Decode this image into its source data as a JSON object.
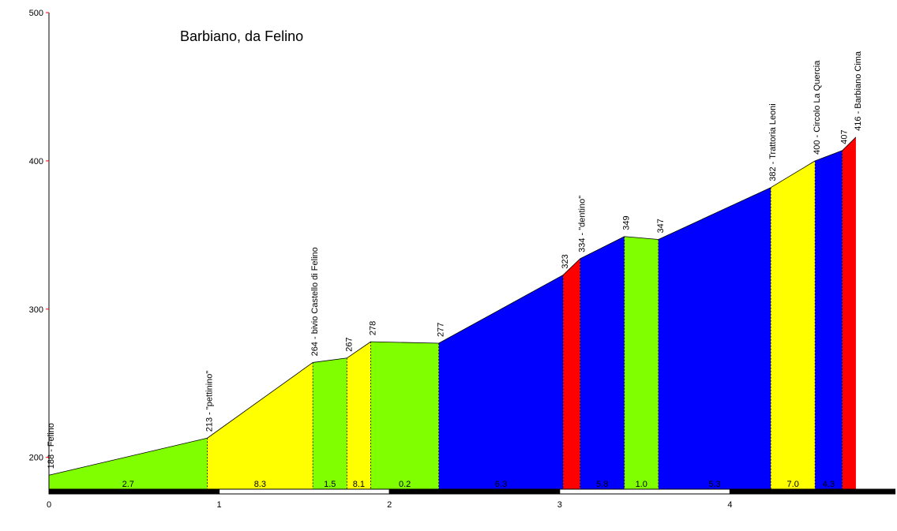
{
  "chart_data": {
    "type": "area",
    "title": "Barbiano, da Felino",
    "xlabel": "",
    "ylabel": "",
    "xlim": [
      0,
      4.97
    ],
    "ylim": [
      178,
      500
    ],
    "x_ticks": [
      "0",
      "1",
      "2",
      "3",
      "4"
    ],
    "y_ticks": [
      "200",
      "300",
      "400",
      "500"
    ],
    "grid": false,
    "profile": [
      {
        "x": 0.0,
        "y": 188,
        "label": "188 - Felino"
      },
      {
        "x": 0.93,
        "y": 213,
        "label": "213 - \"pettinino\""
      },
      {
        "x": 1.55,
        "y": 264,
        "label": "264 - bivio Castello di Felino"
      },
      {
        "x": 1.75,
        "y": 267,
        "label": "267"
      },
      {
        "x": 1.89,
        "y": 278,
        "label": "278"
      },
      {
        "x": 2.29,
        "y": 277,
        "label": "277"
      },
      {
        "x": 3.02,
        "y": 323,
        "label": "323"
      },
      {
        "x": 3.12,
        "y": 334,
        "label": "334 - \"dentino\""
      },
      {
        "x": 3.38,
        "y": 349,
        "label": "349"
      },
      {
        "x": 3.58,
        "y": 347,
        "label": "347"
      },
      {
        "x": 4.24,
        "y": 382,
        "label": "382 - Trattoria Leoni"
      },
      {
        "x": 4.5,
        "y": 400,
        "label": "400 - Circolo La Quercia"
      },
      {
        "x": 4.66,
        "y": 407,
        "label": "407"
      },
      {
        "x": 4.74,
        "y": 416,
        "label": "416 - Barbiano Cima"
      }
    ],
    "segments": [
      {
        "gradient": "2.7",
        "color": "#80ff00"
      },
      {
        "gradient": "8.3",
        "color": "#ffff00"
      },
      {
        "gradient": "1.5",
        "color": "#80ff00"
      },
      {
        "gradient": "8.1",
        "color": "#ffff00"
      },
      {
        "gradient": "0.2",
        "color": "#80ff00"
      },
      {
        "gradient": "6.3",
        "color": "#0000ff"
      },
      {
        "gradient": "",
        "color": "#ff0000"
      },
      {
        "gradient": "5.8",
        "color": "#0000ff"
      },
      {
        "gradient": "1.0",
        "color": "#80ff00"
      },
      {
        "gradient": "5.3",
        "color": "#0000ff"
      },
      {
        "gradient": "7.0",
        "color": "#ffff00"
      },
      {
        "gradient": "4.3",
        "color": "#0000ff"
      },
      {
        "gradient": "",
        "color": "#ff0000"
      }
    ]
  }
}
